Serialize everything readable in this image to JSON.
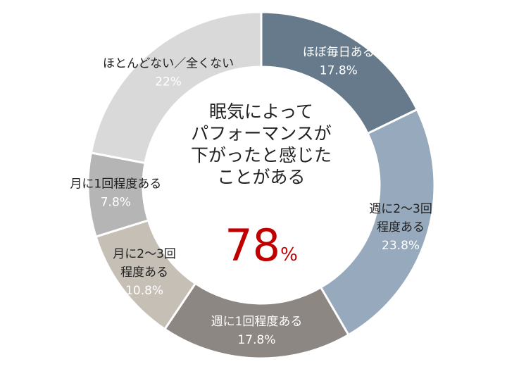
{
  "chart_data": {
    "type": "pie",
    "donut": true,
    "slices": [
      {
        "label_lines": [
          "ほぼ毎日ある"
        ],
        "value": 17.8,
        "value_text": "17.8%",
        "color": "#667a8c",
        "label_color": "#ffffff"
      },
      {
        "label_lines": [
          "週に2〜3回",
          "程度ある"
        ],
        "value": 23.8,
        "value_text": "23.8%",
        "color": "#97a9bd",
        "label_color": "#222222"
      },
      {
        "label_lines": [
          "週に1回程度ある"
        ],
        "value": 17.8,
        "value_text": "17.8%",
        "color": "#8c8782",
        "label_color": "#ffffff"
      },
      {
        "label_lines": [
          "月に2〜3回",
          "程度ある"
        ],
        "value": 10.8,
        "value_text": "10.8%",
        "color": "#c6bfb6",
        "label_color": "#222222"
      },
      {
        "label_lines": [
          "月に1回程度ある"
        ],
        "value": 7.8,
        "value_text": "7.8%",
        "color": "#b5b5b5",
        "label_color": "#222222"
      },
      {
        "label_lines": [
          "ほとんどない／全くない"
        ],
        "value": 22,
        "value_text": "22%",
        "color": "#d9d9d9",
        "label_color": "#222222"
      }
    ],
    "center": {
      "lines": [
        "眠気によって",
        "パフォーマンスが",
        "下がったと感じた",
        "ことがある"
      ],
      "value": "78",
      "unit": "%",
      "value_color": "#c00000",
      "text_color": "#222222"
    }
  }
}
